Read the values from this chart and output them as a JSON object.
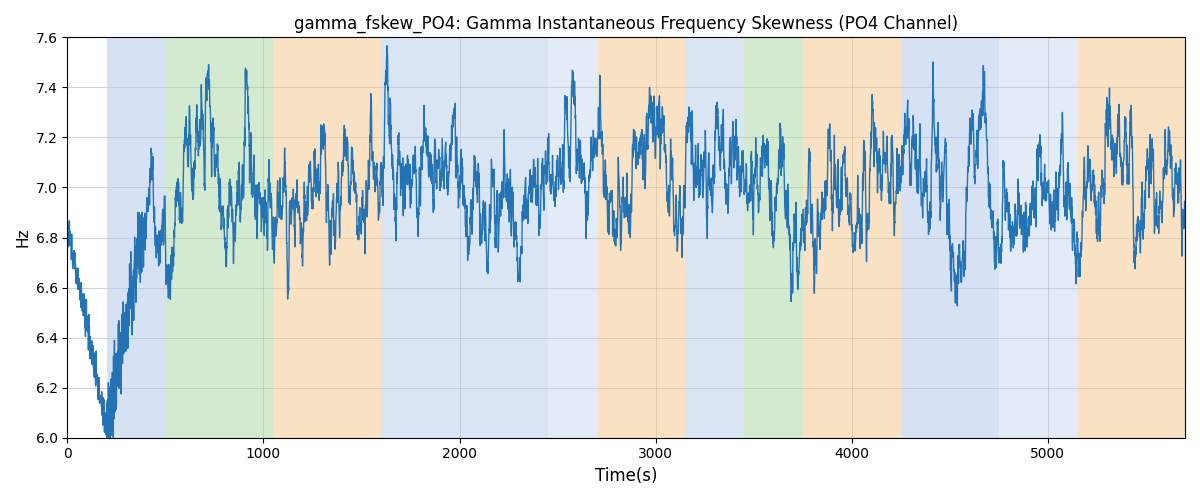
{
  "title": "gamma_fskew_PO4: Gamma Instantaneous Frequency Skewness (PO4 Channel)",
  "xlabel": "Time(s)",
  "ylabel": "Hz",
  "ylim": [
    6.0,
    7.6
  ],
  "xlim": [
    0,
    5700
  ],
  "line_color": "#2474b5",
  "line_width": 1.0,
  "bg_bands": [
    {
      "xmin": 200,
      "xmax": 500,
      "color": "#aec6e8",
      "alpha": 0.5
    },
    {
      "xmin": 500,
      "xmax": 1050,
      "color": "#a8d5a2",
      "alpha": 0.5
    },
    {
      "xmin": 1050,
      "xmax": 1600,
      "color": "#f5c68a",
      "alpha": 0.5
    },
    {
      "xmin": 1600,
      "xmax": 2450,
      "color": "#aec6e8",
      "alpha": 0.45
    },
    {
      "xmin": 2450,
      "xmax": 2700,
      "color": "#aec6e8",
      "alpha": 0.35
    },
    {
      "xmin": 2700,
      "xmax": 3150,
      "color": "#f5c68a",
      "alpha": 0.5
    },
    {
      "xmin": 3150,
      "xmax": 3450,
      "color": "#aec6e8",
      "alpha": 0.45
    },
    {
      "xmin": 3450,
      "xmax": 3750,
      "color": "#a8d5a2",
      "alpha": 0.5
    },
    {
      "xmin": 3750,
      "xmax": 4250,
      "color": "#f5c68a",
      "alpha": 0.5
    },
    {
      "xmin": 4250,
      "xmax": 4750,
      "color": "#aec6e8",
      "alpha": 0.5
    },
    {
      "xmin": 4750,
      "xmax": 5150,
      "color": "#aec6e8",
      "alpha": 0.35
    },
    {
      "xmin": 5150,
      "xmax": 5700,
      "color": "#f5c68a",
      "alpha": 0.5
    }
  ],
  "yticks": [
    6.0,
    6.2,
    6.4,
    6.6,
    6.8,
    7.0,
    7.2,
    7.4,
    7.6
  ],
  "xticks": [
    0,
    1000,
    2000,
    3000,
    4000,
    5000
  ],
  "seed": 42,
  "n_points": 5700
}
